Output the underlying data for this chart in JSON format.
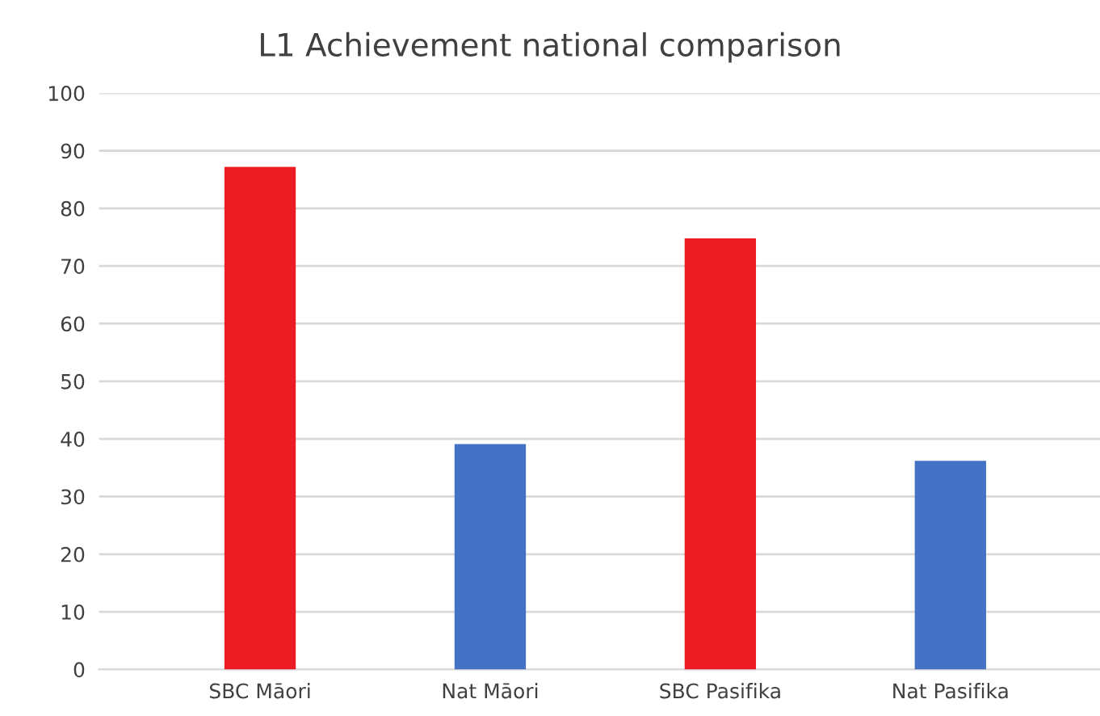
{
  "chart_data": {
    "type": "bar",
    "title": "L1 Achievement national comparison",
    "categories": [
      "SBC Māori",
      "Nat Māori",
      "SBC Pasifika",
      "Nat Pasifika"
    ],
    "values": [
      87.2,
      39.1,
      74.8,
      36.2
    ],
    "colors": [
      "#ed1c24",
      "#4472c4",
      "#ed1c24",
      "#4472c4"
    ],
    "ylim": [
      0,
      100
    ],
    "yticks": [
      0,
      10,
      20,
      30,
      40,
      50,
      60,
      70,
      80,
      90,
      100
    ],
    "grid": "y",
    "legend": false
  }
}
